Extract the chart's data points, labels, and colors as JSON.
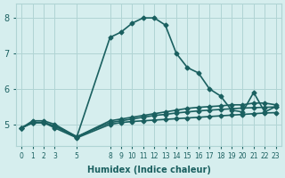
{
  "xlabel": "Humidex (Indice chaleur)",
  "ylabel": "",
  "bg_color": "#d6eeee",
  "grid_color": "#b0d4d4",
  "line_color": "#1a6060",
  "xticks": [
    0,
    1,
    2,
    3,
    5,
    8,
    9,
    10,
    11,
    12,
    13,
    14,
    15,
    16,
    17,
    18,
    19,
    20,
    21,
    22,
    23
  ],
  "yticks": [
    5,
    6,
    7,
    8
  ],
  "ylim": [
    4.4,
    8.4
  ],
  "xlim": [
    -0.5,
    23.5
  ],
  "lines": [
    {
      "x": [
        0,
        1,
        2,
        3,
        5,
        8,
        9,
        10,
        11,
        12,
        13,
        14,
        15,
        16,
        17,
        18,
        19,
        20,
        21,
        22,
        23
      ],
      "y": [
        4.9,
        5.1,
        5.1,
        5.0,
        4.65,
        7.45,
        7.6,
        7.85,
        8.0,
        8.0,
        7.8,
        7.0,
        6.6,
        6.45,
        6.0,
        5.8,
        5.4,
        5.35,
        5.9,
        5.35,
        5.5
      ],
      "style": "-",
      "marker": "D",
      "markersize": 2.5,
      "linewidth": 1.2
    },
    {
      "x": [
        0,
        1,
        2,
        3,
        5,
        8,
        9,
        10,
        11,
        12,
        13,
        14,
        15,
        16,
        17,
        18,
        19,
        20,
        21,
        22,
        23
      ],
      "y": [
        4.9,
        5.05,
        5.05,
        4.95,
        4.65,
        5.1,
        5.15,
        5.2,
        5.25,
        5.3,
        5.35,
        5.4,
        5.45,
        5.48,
        5.5,
        5.52,
        5.55,
        5.55,
        5.6,
        5.6,
        5.55
      ],
      "style": "-",
      "marker": "D",
      "markersize": 2.5,
      "linewidth": 1.2
    },
    {
      "x": [
        0,
        1,
        2,
        3,
        5,
        8,
        9,
        10,
        11,
        12,
        13,
        14,
        15,
        16,
        17,
        18,
        19,
        20,
        21,
        22,
        23
      ],
      "y": [
        4.9,
        5.05,
        5.05,
        4.95,
        4.65,
        5.05,
        5.1,
        5.15,
        5.2,
        5.25,
        5.28,
        5.32,
        5.35,
        5.38,
        5.4,
        5.42,
        5.44,
        5.46,
        5.47,
        5.48,
        5.49
      ],
      "style": "-",
      "marker": "D",
      "markersize": 2.5,
      "linewidth": 1.2
    },
    {
      "x": [
        0,
        1,
        2,
        3,
        5,
        8,
        9,
        10,
        11,
        12,
        13,
        14,
        15,
        16,
        17,
        18,
        19,
        20,
        21,
        22,
        23
      ],
      "y": [
        4.9,
        5.05,
        5.05,
        4.9,
        4.62,
        5.0,
        5.05,
        5.08,
        5.1,
        5.12,
        5.14,
        5.16,
        5.18,
        5.2,
        5.22,
        5.24,
        5.26,
        5.28,
        5.3,
        5.32,
        5.33
      ],
      "style": "-",
      "marker": "D",
      "markersize": 2.5,
      "linewidth": 1.2
    }
  ]
}
